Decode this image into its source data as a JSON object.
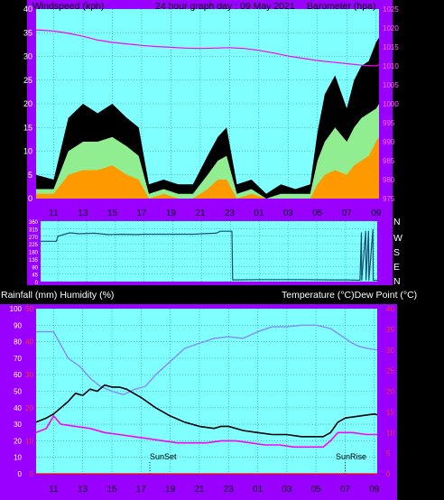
{
  "wind_panel": {
    "title": "24 hour graph day : 09 May 2021",
    "left_label": "Windspeed (kph)",
    "right_label": "Barometer (hpa)"
  },
  "direction_panel": {
    "compass_labels": [
      "N",
      "W",
      "S",
      "E",
      "N"
    ]
  },
  "temp_panel": {
    "left_label": "Rainfall (mm)  Humidity (%)",
    "right_label": "Temperature (°C)Dew Point (°C)",
    "annotations": [
      "SunSet",
      "SunRise"
    ]
  },
  "colors": {
    "frame": "#9900ff",
    "plot_bg": "#7fffff",
    "grid": "#2a8fa0",
    "gust": "#000000",
    "wind_avg": "#90ee90",
    "wind_low": "#ff9900",
    "barometer": "#ff00ff",
    "direction": "#1b4f72",
    "temperature": "#000000",
    "dewpoint": "#ff00ff",
    "humidity": "#8888ff",
    "rain": "#ff0000"
  },
  "chart_data": [
    {
      "type": "line",
      "name": "wind",
      "title": "24 hour graph day : 09 May 2021",
      "ylabel": "Windspeed (kph)",
      "y2label": "Barometer (hpa)",
      "xticks": [
        "11",
        "13",
        "15",
        "17",
        "19",
        "21",
        "23",
        "01",
        "03",
        "05",
        "07",
        "09"
      ],
      "x_hours_range": [
        9.8,
        33.2
      ],
      "ylim": [
        0,
        40
      ],
      "yticks": [
        0,
        5,
        10,
        15,
        20,
        25,
        30,
        35,
        40
      ],
      "y2lim": [
        975,
        1025
      ],
      "y2ticks": [
        975,
        980,
        985,
        990,
        995,
        1000,
        1005,
        1010,
        1015,
        1020,
        1025
      ],
      "grid": true,
      "series": [
        {
          "x": [
            9.8,
            11.0,
            12.0,
            13.0,
            14.0,
            15.0,
            16.0,
            16.8,
            17.5,
            18.5,
            19.5,
            20.5,
            21.5,
            22.2,
            22.8,
            23.5,
            24.5,
            25.5,
            26.5,
            27.5,
            28.5,
            29.0,
            29.5,
            30.2,
            31.0,
            31.5,
            32.0,
            32.5,
            33.0,
            33.2
          ],
          "values": [
            5,
            4,
            17,
            20,
            18,
            20,
            17,
            15,
            3,
            4,
            3,
            3,
            9,
            13,
            15,
            3,
            4,
            1,
            3,
            2,
            3,
            14,
            22,
            26,
            19,
            25,
            28,
            29,
            33,
            34
          ]
        },
        {
          "x": [
            9.8,
            11.0,
            12.0,
            13.0,
            14.0,
            15.0,
            16.0,
            16.8,
            17.5,
            18.5,
            19.5,
            20.5,
            21.5,
            22.2,
            22.8,
            23.5,
            24.5,
            25.5,
            26.5,
            27.5,
            28.5,
            29.0,
            29.5,
            30.2,
            31.0,
            31.5,
            32.0,
            32.5,
            33.0,
            33.2
          ],
          "values": [
            2,
            2,
            10,
            12,
            12,
            13,
            11,
            9,
            1,
            2,
            1,
            1,
            5,
            8,
            9,
            1,
            2,
            0,
            1,
            1,
            1,
            8,
            12,
            15,
            12,
            15,
            17,
            18,
            19,
            20
          ]
        },
        {
          "x": [
            9.8,
            11.0,
            12.0,
            13.0,
            14.0,
            15.0,
            16.0,
            16.8,
            17.5,
            18.5,
            19.5,
            20.5,
            21.5,
            22.2,
            22.8,
            23.5,
            24.5,
            25.5,
            26.5,
            27.5,
            28.5,
            29.0,
            29.5,
            30.2,
            31.0,
            31.5,
            32.0,
            32.5,
            33.0,
            33.2
          ],
          "values": [
            1,
            1,
            5,
            6,
            6,
            7,
            5,
            4,
            0,
            1,
            0,
            0,
            2,
            4,
            4,
            0,
            1,
            0,
            0,
            0,
            0,
            3,
            5,
            6,
            5,
            7,
            8,
            9,
            12,
            13
          ]
        },
        {
          "x": [
            9.8,
            11.0,
            12.0,
            13.0,
            14.0,
            15.0,
            16.0,
            17.0,
            18.0,
            19.0,
            20.0,
            21.0,
            22.0,
            23.0,
            24.0,
            25.0,
            26.0,
            27.0,
            28.0,
            29.0,
            30.0,
            31.0,
            32.0,
            33.0,
            33.2
          ],
          "y2_values": [
            1019.5,
            1019.2,
            1018.6,
            1017.8,
            1016.8,
            1016.2,
            1015.8,
            1015.4,
            1015.1,
            1014.9,
            1014.7,
            1014.6,
            1014.7,
            1014.8,
            1014.6,
            1014.1,
            1013.4,
            1012.6,
            1012.0,
            1011.4,
            1011.0,
            1010.6,
            1010.2,
            1010.0,
            1010.3
          ]
        }
      ]
    },
    {
      "type": "line",
      "name": "wind direction",
      "xticks": [
        "11",
        "13",
        "15",
        "17",
        "19",
        "21",
        "23",
        "01",
        "03",
        "05",
        "07",
        "09"
      ],
      "x_hours_range": [
        9.8,
        33.2
      ],
      "ylim": [
        0,
        360
      ],
      "yticks": [
        0,
        45,
        90,
        135,
        180,
        225,
        270,
        315,
        360
      ],
      "y_side_labels": [
        "N",
        "W",
        "S",
        "E",
        "N"
      ],
      "grid": true,
      "series": [
        {
          "x": [
            9.8,
            10.9,
            11.0,
            11.8,
            12.5,
            13.5,
            14.5,
            15.5,
            16.5,
            17.0,
            17.5,
            20.5,
            21.0,
            22.0,
            22.3,
            23.1,
            23.15,
            25.0,
            28.0,
            30.0,
            31.0,
            32.0,
            32.1,
            32.12,
            32.4,
            32.42,
            32.6,
            32.62,
            32.9,
            32.92,
            33.2
          ],
          "values": [
            240,
            240,
            270,
            290,
            285,
            288,
            280,
            282,
            280,
            282,
            282,
            282,
            285,
            288,
            300,
            300,
            10,
            12,
            12,
            10,
            10,
            8,
            290,
            8,
            300,
            10,
            300,
            8,
            310,
            8,
            8
          ]
        }
      ]
    },
    {
      "type": "line",
      "name": "temperature humidity",
      "ylabel": "Rainfall (mm)  Humidity (%)",
      "y2label": "Temperature (°C)Dew Point (°C)",
      "xticks": [
        "11",
        "13",
        "15",
        "17",
        "19",
        "21",
        "23",
        "01",
        "03",
        "05",
        "07",
        "09"
      ],
      "x_hours_range": [
        9.8,
        33.2
      ],
      "ylim": [
        0,
        100
      ],
      "yticks": [
        0,
        10,
        20,
        30,
        40,
        50,
        60,
        70,
        80,
        90,
        100
      ],
      "rain_ylim": [
        0,
        50
      ],
      "rain_yticks": [
        0,
        10,
        20,
        30,
        40,
        50
      ],
      "y2lim": [
        0,
        40
      ],
      "y2ticks": [
        0,
        5,
        10,
        15,
        20,
        25,
        30,
        35,
        40
      ],
      "grid": true,
      "annotations": [
        {
          "text": "SunSet",
          "x": 17.6
        },
        {
          "text": "SunRise",
          "x": 31.0
        }
      ],
      "series": [
        {
          "x": [
            9.8,
            10.5,
            11.0,
            12.0,
            12.5,
            13.0,
            13.5,
            14.0,
            14.5,
            15.0,
            15.5,
            16.0,
            17.0,
            18.0,
            19.0,
            20.0,
            21.0,
            22.0,
            22.5,
            23.0,
            24.0,
            25.0,
            26.0,
            27.0,
            28.0,
            29.0,
            29.5,
            30.0,
            30.5,
            31.0,
            32.0,
            33.0,
            33.2
          ],
          "y2_values": [
            12.5,
            13.5,
            14.5,
            17.5,
            19.5,
            19.0,
            20.5,
            20.0,
            21.5,
            21.0,
            21.0,
            20.5,
            18.5,
            16.0,
            14.0,
            12.5,
            11.5,
            11.0,
            11.5,
            11.5,
            10.5,
            10.0,
            9.5,
            9.5,
            9.0,
            9.0,
            9.0,
            10.0,
            12.5,
            13.5,
            14.0,
            14.5,
            14.3
          ]
        },
        {
          "x": [
            9.8,
            10.5,
            11.0,
            11.5,
            12.5,
            13.5,
            14.5,
            15.5,
            16.5,
            17.5,
            18.5,
            19.5,
            20.5,
            21.5,
            22.5,
            23.5,
            24.5,
            25.5,
            26.5,
            27.5,
            28.5,
            29.5,
            30.0,
            30.5,
            31.5,
            32.5,
            33.2
          ],
          "y2_values": [
            10.0,
            11.0,
            14.0,
            12.0,
            11.5,
            11.0,
            10.0,
            9.5,
            9.0,
            8.5,
            8.0,
            7.5,
            7.5,
            7.5,
            8.0,
            8.0,
            7.5,
            7.0,
            7.0,
            6.5,
            6.5,
            6.5,
            8.0,
            10.0,
            10.0,
            9.5,
            9.5
          ]
        },
        {
          "x": [
            9.8,
            11.0,
            11.5,
            12.0,
            12.8,
            13.5,
            14.2,
            15.0,
            15.8,
            16.5,
            17.3,
            18.0,
            19.0,
            20.0,
            21.0,
            22.0,
            23.0,
            24.0,
            25.0,
            26.0,
            27.0,
            28.0,
            29.0,
            29.5,
            30.0,
            30.5,
            31.0,
            31.5,
            32.0,
            32.5,
            33.2
          ],
          "values": [
            86,
            86,
            78,
            70,
            65,
            58,
            53,
            50,
            48,
            51,
            53,
            60,
            68,
            76,
            79,
            82,
            83,
            82,
            86,
            89,
            89,
            90,
            90,
            89,
            88,
            85,
            82,
            79,
            77,
            76,
            75
          ]
        },
        {
          "x": [
            9.8,
            33.2
          ],
          "rain_values": [
            0,
            0
          ]
        }
      ]
    }
  ]
}
